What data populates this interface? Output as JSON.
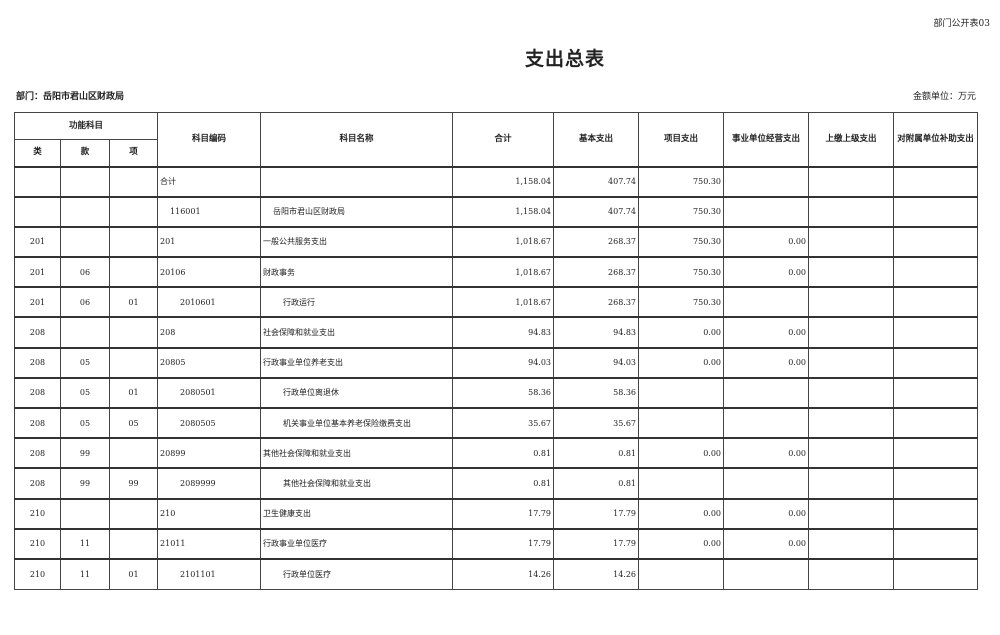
{
  "form_number": "部门公开表03",
  "title": "支出总表",
  "department": "部门：岳阳市君山区财政局",
  "unit": "金额单位：万元",
  "headers": {
    "functional_subject": "功能科目",
    "lei": "类",
    "kuan": "款",
    "xiang": "项",
    "code": "科目编码",
    "name": "科目名称",
    "total": "合计",
    "basic": "基本支出",
    "project": "项目支出",
    "business": "事业单位经营支出",
    "upper": "上缴上级支出",
    "subsidy": "对附属单位补助支出"
  },
  "rows": [
    {
      "lei": "",
      "kuan": "",
      "xiang": "",
      "code": "合计",
      "name": "",
      "total": "1,158.04",
      "basic": "407.74",
      "project": "750.30",
      "business": "",
      "upper": "",
      "subsidy": "",
      "indent": 0
    },
    {
      "lei": "",
      "kuan": "",
      "xiang": "",
      "code": "116001",
      "name": "岳阳市君山区财政局",
      "total": "1,158.04",
      "basic": "407.74",
      "project": "750.30",
      "business": "",
      "upper": "",
      "subsidy": "",
      "indent": 1
    },
    {
      "lei": "201",
      "kuan": "",
      "xiang": "",
      "code": "201",
      "name": "一般公共服务支出",
      "total": "1,018.67",
      "basic": "268.37",
      "project": "750.30",
      "business": "0.00",
      "upper": "",
      "subsidy": "",
      "indent": 0
    },
    {
      "lei": "201",
      "kuan": "06",
      "xiang": "",
      "code": "20106",
      "name": "财政事务",
      "total": "1,018.67",
      "basic": "268.37",
      "project": "750.30",
      "business": "0.00",
      "upper": "",
      "subsidy": "",
      "indent": 0
    },
    {
      "lei": "201",
      "kuan": "06",
      "xiang": "01",
      "code": "2010601",
      "name": "行政运行",
      "total": "1,018.67",
      "basic": "268.37",
      "project": "750.30",
      "business": "",
      "upper": "",
      "subsidy": "",
      "indent": 2
    },
    {
      "lei": "208",
      "kuan": "",
      "xiang": "",
      "code": "208",
      "name": "社会保障和就业支出",
      "total": "94.83",
      "basic": "94.83",
      "project": "0.00",
      "business": "0.00",
      "upper": "",
      "subsidy": "",
      "indent": 0
    },
    {
      "lei": "208",
      "kuan": "05",
      "xiang": "",
      "code": "20805",
      "name": "行政事业单位养老支出",
      "total": "94.03",
      "basic": "94.03",
      "project": "0.00",
      "business": "0.00",
      "upper": "",
      "subsidy": "",
      "indent": 0
    },
    {
      "lei": "208",
      "kuan": "05",
      "xiang": "01",
      "code": "2080501",
      "name": "行政单位离退休",
      "total": "58.36",
      "basic": "58.36",
      "project": "",
      "business": "",
      "upper": "",
      "subsidy": "",
      "indent": 2
    },
    {
      "lei": "208",
      "kuan": "05",
      "xiang": "05",
      "code": "2080505",
      "name": "机关事业单位基本养老保险缴费支出",
      "total": "35.67",
      "basic": "35.67",
      "project": "",
      "business": "",
      "upper": "",
      "subsidy": "",
      "indent": 2
    },
    {
      "lei": "208",
      "kuan": "99",
      "xiang": "",
      "code": "20899",
      "name": "其他社会保障和就业支出",
      "total": "0.81",
      "basic": "0.81",
      "project": "0.00",
      "business": "0.00",
      "upper": "",
      "subsidy": "",
      "indent": 0
    },
    {
      "lei": "208",
      "kuan": "99",
      "xiang": "99",
      "code": "2089999",
      "name": "其他社会保障和就业支出",
      "total": "0.81",
      "basic": "0.81",
      "project": "",
      "business": "",
      "upper": "",
      "subsidy": "",
      "indent": 2
    },
    {
      "lei": "210",
      "kuan": "",
      "xiang": "",
      "code": "210",
      "name": "卫生健康支出",
      "total": "17.79",
      "basic": "17.79",
      "project": "0.00",
      "business": "0.00",
      "upper": "",
      "subsidy": "",
      "indent": 0
    },
    {
      "lei": "210",
      "kuan": "11",
      "xiang": "",
      "code": "21011",
      "name": "行政事业单位医疗",
      "total": "17.79",
      "basic": "17.79",
      "project": "0.00",
      "business": "0.00",
      "upper": "",
      "subsidy": "",
      "indent": 0
    },
    {
      "lei": "210",
      "kuan": "11",
      "xiang": "01",
      "code": "2101101",
      "name": "行政单位医疗",
      "total": "14.26",
      "basic": "14.26",
      "project": "",
      "business": "",
      "upper": "",
      "subsidy": "",
      "indent": 2
    }
  ]
}
